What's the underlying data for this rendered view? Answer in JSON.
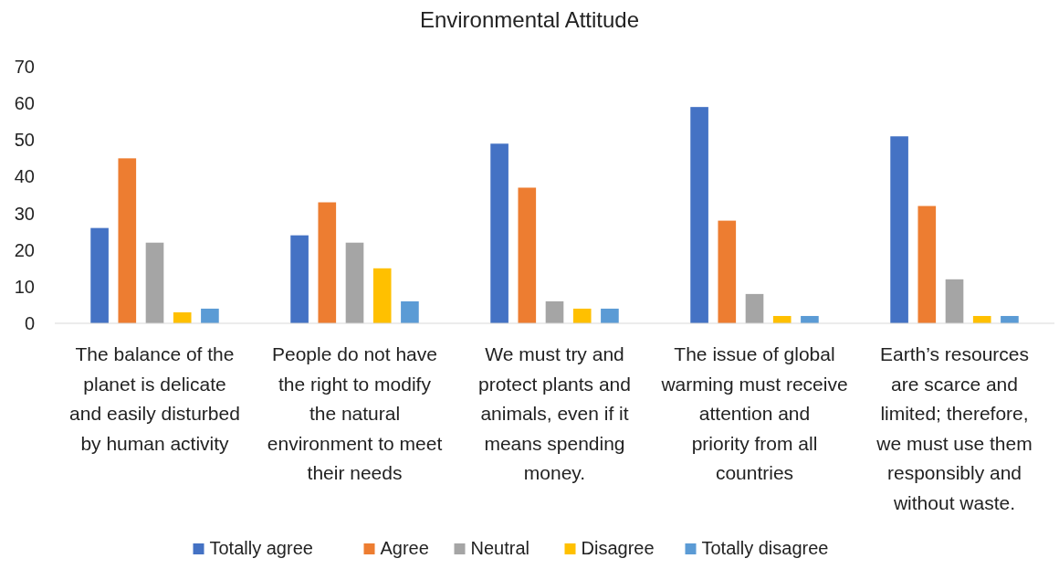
{
  "chart_data": {
    "type": "bar",
    "title": "Environmental Attitude",
    "categories": [
      "The balance of the planet is delicate and easily disturbed by human activity",
      "People do not have the right to modify the natural environment to meet their needs",
      "We must try and protect plants and animals, even if it means spending money.",
      "The issue of global warming must receive attention and priority from all countries",
      "Earth’s resources are scarce and limited; therefore, we must use them responsibly and without waste."
    ],
    "series": [
      {
        "name": "Totally agree",
        "color": "#4472c4",
        "values": [
          26,
          24,
          49,
          59,
          51
        ]
      },
      {
        "name": "Agree",
        "color": "#ed7d31",
        "values": [
          45,
          33,
          37,
          28,
          32
        ]
      },
      {
        "name": "Neutral",
        "color": "#a5a5a5",
        "values": [
          22,
          22,
          6,
          8,
          12
        ]
      },
      {
        "name": "Disagree",
        "color": "#ffc000",
        "values": [
          3,
          15,
          4,
          2,
          2
        ]
      },
      {
        "name": "Totally disagree",
        "color": "#5b9bd5",
        "values": [
          4,
          6,
          4,
          2,
          2
        ]
      }
    ],
    "ylim": [
      0,
      70
    ],
    "yticks": [
      0,
      10,
      20,
      30,
      40,
      50,
      60,
      70
    ],
    "grid": false,
    "legend": "bottom"
  }
}
